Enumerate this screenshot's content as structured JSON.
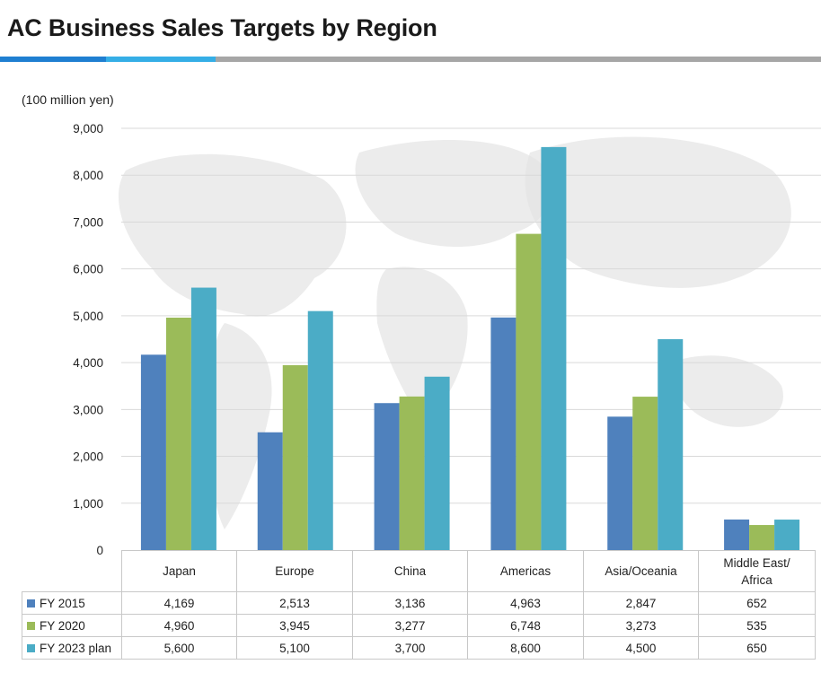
{
  "title": "AC Business Sales Targets by Region",
  "chart_data": {
    "type": "bar",
    "unit_label": "(100 million yen)",
    "categories": [
      "Japan",
      "Europe",
      "China",
      "Americas",
      "Asia/Oceania",
      "Middle East/ Africa"
    ],
    "category_lines": [
      [
        "Japan"
      ],
      [
        "Europe"
      ],
      [
        "China"
      ],
      [
        "Americas"
      ],
      [
        "Asia/Oceania"
      ],
      [
        "Middle East/",
        "Africa"
      ]
    ],
    "series": [
      {
        "name": "FY 2015",
        "color": "#4f81bd",
        "values": [
          4169,
          2513,
          3136,
          4963,
          2847,
          652
        ],
        "display": [
          "4,169",
          "2,513",
          "3,136",
          "4,963",
          "2,847",
          "652"
        ]
      },
      {
        "name": "FY 2020",
        "color": "#9bbb59",
        "values": [
          4960,
          3945,
          3277,
          6748,
          3273,
          535
        ],
        "display": [
          "4,960",
          "3,945",
          "3,277",
          "6,748",
          "3,273",
          "535"
        ]
      },
      {
        "name": "FY 2023 plan",
        "color": "#4bacc6",
        "values": [
          5600,
          5100,
          3700,
          8600,
          4500,
          650
        ],
        "display": [
          "5,600",
          "5,100",
          "3,700",
          "8,600",
          "4,500",
          "650"
        ]
      }
    ],
    "ylim": [
      0,
      9000
    ],
    "yticks": [
      0,
      1000,
      2000,
      3000,
      4000,
      5000,
      6000,
      7000,
      8000,
      9000
    ],
    "ytick_labels": [
      "0",
      "1,000",
      "2,000",
      "3,000",
      "4,000",
      "5,000",
      "6,000",
      "7,000",
      "8,000",
      "9,000"
    ],
    "grid": true,
    "legend": "data table below chart",
    "background": "world map watermark"
  }
}
